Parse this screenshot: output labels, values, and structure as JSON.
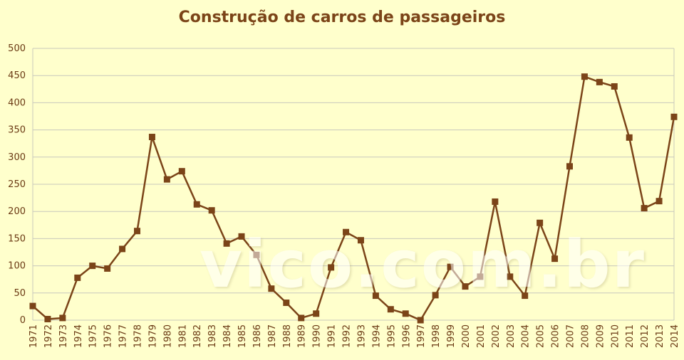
{
  "chart_data": {
    "type": "line",
    "title": "Construção de carros de passageiros",
    "xlabel": "",
    "ylabel": "",
    "ylim": [
      0,
      500
    ],
    "yticks": [
      0,
      50,
      100,
      150,
      200,
      250,
      300,
      350,
      400,
      450,
      500
    ],
    "grid": true,
    "legend": "none",
    "x": [
      "1971",
      "1972",
      "1973",
      "1974",
      "1975",
      "1976",
      "1977",
      "1978",
      "1979",
      "1980",
      "1981",
      "1982",
      "1983",
      "1984",
      "1985",
      "1986",
      "1987",
      "1988",
      "1989",
      "1990",
      "1991",
      "1992",
      "1993",
      "1994",
      "1995",
      "1996",
      "1997",
      "1998",
      "1999",
      "2000",
      "2001",
      "2002",
      "2003",
      "2004",
      "2005",
      "2006",
      "2007",
      "2008",
      "2009",
      "2010",
      "2011",
      "2012",
      "2013",
      "2014"
    ],
    "series": [
      {
        "values": [
          26,
          2,
          4,
          78,
          100,
          95,
          131,
          164,
          337,
          259,
          274,
          213,
          202,
          141,
          154,
          120,
          58,
          32,
          4,
          12,
          97,
          162,
          147,
          45,
          20,
          12,
          0,
          46,
          98,
          62,
          80,
          218,
          80,
          45,
          179,
          113,
          283,
          448,
          438,
          430,
          336,
          206,
          219,
          374
        ]
      }
    ],
    "colors": {
      "line": "#7b4418",
      "marker": "#7b4418",
      "grid": "#c8c8bd",
      "background": "#ffffcc",
      "title": "#7b4418",
      "ticks": "#6b3a14"
    }
  },
  "watermark": "vico.com.br"
}
